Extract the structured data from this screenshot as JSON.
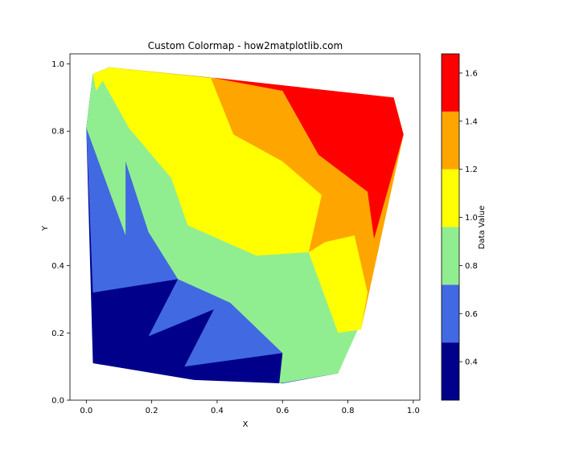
{
  "chart_data": {
    "type": "filled-contour",
    "title": "Custom Colormap - how2matplotlib.com",
    "xlabel": "X",
    "ylabel": "Y",
    "xlim": [
      -0.05,
      1.02
    ],
    "ylim": [
      0.0,
      1.03
    ],
    "xticks": [
      "0.0",
      "0.2",
      "0.4",
      "0.6",
      "0.8",
      "1.0"
    ],
    "yticks": [
      "0.0",
      "0.2",
      "0.4",
      "0.6",
      "0.8",
      "1.0"
    ],
    "grid": false,
    "colorbar": {
      "label": "Data Value",
      "range": [
        0.24,
        1.68
      ],
      "levels": [
        0.24,
        0.48,
        0.72,
        0.96,
        1.2,
        1.44,
        1.68
      ],
      "tick_labels": [
        "0.4",
        "0.6",
        "0.8",
        "1.0",
        "1.2",
        "1.4",
        "1.6"
      ],
      "tick_values": [
        0.4,
        0.6,
        0.8,
        1.0,
        1.2,
        1.4,
        1.6
      ],
      "colors": [
        "#00008b",
        "#4169e1",
        "#90ee90",
        "#ffff00",
        "#ffa500",
        "#ff0000"
      ]
    },
    "regions": [
      {
        "level": 0,
        "points": [
          [
            0.0,
            0.81
          ],
          [
            0.02,
            0.11
          ],
          [
            0.33,
            0.06
          ],
          [
            0.6,
            0.05
          ],
          [
            0.77,
            0.08
          ],
          [
            0.97,
            0.79
          ],
          [
            0.94,
            0.9
          ],
          [
            0.07,
            0.99
          ],
          [
            0.02,
            0.97
          ]
        ]
      },
      {
        "level": 1,
        "points": [
          [
            0.0,
            0.81
          ],
          [
            0.02,
            0.32
          ],
          [
            0.28,
            0.36
          ],
          [
            0.19,
            0.19
          ],
          [
            0.39,
            0.27
          ],
          [
            0.3,
            0.1
          ],
          [
            0.6,
            0.14
          ],
          [
            0.6,
            0.05
          ],
          [
            0.77,
            0.08
          ],
          [
            0.97,
            0.79
          ],
          [
            0.94,
            0.9
          ],
          [
            0.07,
            0.99
          ],
          [
            0.02,
            0.97
          ]
        ]
      },
      {
        "level": 2,
        "points": [
          [
            0.0,
            0.81
          ],
          [
            0.02,
            0.97
          ],
          [
            0.07,
            0.99
          ],
          [
            0.94,
            0.9
          ],
          [
            0.97,
            0.79
          ],
          [
            0.83,
            0.21
          ],
          [
            0.77,
            0.08
          ],
          [
            0.59,
            0.05
          ],
          [
            0.6,
            0.14
          ],
          [
            0.44,
            0.29
          ],
          [
            0.28,
            0.36
          ],
          [
            0.19,
            0.5
          ],
          [
            0.12,
            0.71
          ],
          [
            0.12,
            0.49
          ]
        ]
      },
      {
        "level": 3,
        "points": [
          [
            0.02,
            0.97
          ],
          [
            0.07,
            0.99
          ],
          [
            0.94,
            0.9
          ],
          [
            0.97,
            0.79
          ],
          [
            0.84,
            0.21
          ],
          [
            0.77,
            0.2
          ],
          [
            0.68,
            0.44
          ],
          [
            0.52,
            0.43
          ],
          [
            0.31,
            0.52
          ],
          [
            0.26,
            0.66
          ],
          [
            0.13,
            0.81
          ],
          [
            0.05,
            0.95
          ],
          [
            0.03,
            0.92
          ]
        ]
      },
      {
        "level": 4,
        "points": [
          [
            0.38,
            0.96
          ],
          [
            0.07,
            0.99
          ],
          [
            0.94,
            0.9
          ],
          [
            0.97,
            0.79
          ],
          [
            0.84,
            0.21
          ],
          [
            0.86,
            0.32
          ],
          [
            0.82,
            0.49
          ],
          [
            0.73,
            0.47
          ],
          [
            0.68,
            0.44
          ],
          [
            0.72,
            0.61
          ],
          [
            0.6,
            0.71
          ],
          [
            0.45,
            0.79
          ]
        ]
      },
      {
        "level": 5,
        "points": [
          [
            0.6,
            0.92
          ],
          [
            0.38,
            0.96
          ],
          [
            0.94,
            0.9
          ],
          [
            0.97,
            0.79
          ],
          [
            0.88,
            0.48
          ],
          [
            0.86,
            0.62
          ],
          [
            0.71,
            0.73
          ]
        ]
      }
    ]
  }
}
